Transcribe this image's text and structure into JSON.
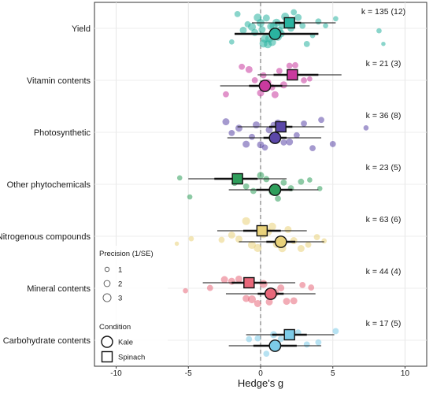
{
  "chart_data": {
    "type": "scatter",
    "title": "",
    "xlabel": "Hedge's g",
    "ylabel": "",
    "xlim": [
      -11.5,
      11.5
    ],
    "x_ticks": [
      -10,
      -5,
      0,
      5,
      10
    ],
    "x_tick_labels": [
      "-10",
      "-5",
      "0",
      "5",
      "10"
    ],
    "reference_line_x": 0,
    "grid": true,
    "categories": [
      "Yield",
      "Vitamin contents",
      "Photosynthetic",
      "Other phytochemicals",
      "Nitrogenous compounds",
      "Mineral contents",
      "Carbohydrate contents"
    ],
    "k_labels": [
      "k = 135 (12)",
      "k = 21 (3)",
      "k = 36 (8)",
      "k = 23 (5)",
      "k = 63 (6)",
      "k = 44 (4)",
      "k = 17 (5)"
    ],
    "colors": [
      "#2ab3a0",
      "#c93a9e",
      "#5b47a8",
      "#2f9e5b",
      "#e9d27a",
      "#e8687a",
      "#7ccbe8"
    ],
    "estimates": [
      {
        "category": "Yield",
        "condition": "Kale",
        "g": 1.0,
        "ci": [
          -1.8,
          4.0
        ],
        "pi": [
          -1.8,
          4.0
        ]
      },
      {
        "category": "Yield",
        "condition": "Spinach",
        "g": 2.0,
        "ci": [
          1.0,
          2.8
        ],
        "pi": [
          -0.6,
          5.2
        ]
      },
      {
        "category": "Vitamin contents",
        "condition": "Kale",
        "g": 0.3,
        "ci": [
          -0.8,
          1.5
        ],
        "pi": [
          -2.8,
          3.4
        ]
      },
      {
        "category": "Vitamin contents",
        "condition": "Spinach",
        "g": 2.2,
        "ci": [
          0.9,
          4.0
        ],
        "pi": [
          -0.2,
          5.6
        ]
      },
      {
        "category": "Photosynthetic",
        "condition": "Kale",
        "g": 1.0,
        "ci": [
          0.2,
          1.8
        ],
        "pi": [
          -2.3,
          4.2
        ]
      },
      {
        "category": "Photosynthetic",
        "condition": "Spinach",
        "g": 1.4,
        "ci": [
          0.6,
          2.2
        ],
        "pi": [
          -1.6,
          4.4
        ]
      },
      {
        "category": "Other phytochemicals",
        "condition": "Kale",
        "g": 1.0,
        "ci": [
          -0.3,
          2.2
        ],
        "pi": [
          -2.2,
          4.0
        ]
      },
      {
        "category": "Other phytochemicals",
        "condition": "Spinach",
        "g": -1.6,
        "ci": [
          -3.2,
          -0.2
        ],
        "pi": [
          -5.0,
          1.8
        ]
      },
      {
        "category": "Nitrogenous compounds",
        "condition": "Kale",
        "g": 1.4,
        "ci": [
          0.4,
          2.4
        ],
        "pi": [
          -1.5,
          4.4
        ]
      },
      {
        "category": "Nitrogenous compounds",
        "condition": "Spinach",
        "g": 0.1,
        "ci": [
          -1.2,
          1.4
        ],
        "pi": [
          -3.0,
          3.2
        ]
      },
      {
        "category": "Mineral contents",
        "condition": "Kale",
        "g": 0.7,
        "ci": [
          -0.2,
          1.6
        ],
        "pi": [
          -2.4,
          3.8
        ]
      },
      {
        "category": "Mineral contents",
        "condition": "Spinach",
        "g": -0.8,
        "ci": [
          -2.0,
          0.4
        ],
        "pi": [
          -4.0,
          2.4
        ]
      },
      {
        "category": "Carbohydrate contents",
        "condition": "Kale",
        "g": 1.0,
        "ci": [
          -0.5,
          2.5
        ],
        "pi": [
          -2.2,
          4.2
        ]
      },
      {
        "category": "Carbohydrate contents",
        "condition": "Spinach",
        "g": 2.0,
        "ci": [
          0.8,
          3.2
        ],
        "pi": [
          -1.0,
          5.1
        ]
      }
    ],
    "series": [
      {
        "name": "Yield",
        "points": [
          {
            "g": -2.0,
            "p": 1.5
          },
          {
            "g": -1.6,
            "p": 2.0
          },
          {
            "g": -1.2,
            "p": 2.5
          },
          {
            "g": -0.9,
            "p": 2.0
          },
          {
            "g": -0.6,
            "p": 3.0
          },
          {
            "g": -0.4,
            "p": 2.5
          },
          {
            "g": -0.2,
            "p": 3.0
          },
          {
            "g": 0.0,
            "p": 3.0
          },
          {
            "g": 0.1,
            "p": 2.5
          },
          {
            "g": 0.2,
            "p": 3.0
          },
          {
            "g": 0.3,
            "p": 3.0
          },
          {
            "g": 0.4,
            "p": 2.5
          },
          {
            "g": 0.5,
            "p": 3.0
          },
          {
            "g": 0.6,
            "p": 3.0
          },
          {
            "g": 0.7,
            "p": 2.5
          },
          {
            "g": 0.8,
            "p": 3.0
          },
          {
            "g": 0.9,
            "p": 3.0
          },
          {
            "g": 1.0,
            "p": 2.5
          },
          {
            "g": 1.1,
            "p": 3.0
          },
          {
            "g": 1.2,
            "p": 3.0
          },
          {
            "g": 1.3,
            "p": 2.5
          },
          {
            "g": 1.4,
            "p": 3.0
          },
          {
            "g": 1.5,
            "p": 2.5
          },
          {
            "g": 1.7,
            "p": 3.0
          },
          {
            "g": 1.9,
            "p": 2.5
          },
          {
            "g": 2.1,
            "p": 2.5
          },
          {
            "g": 2.3,
            "p": 2.0
          },
          {
            "g": 2.6,
            "p": 2.5
          },
          {
            "g": 2.9,
            "p": 2.0
          },
          {
            "g": 3.2,
            "p": 2.0
          },
          {
            "g": 3.6,
            "p": 1.5
          },
          {
            "g": 4.0,
            "p": 2.0
          },
          {
            "g": 4.5,
            "p": 1.5
          },
          {
            "g": 5.2,
            "p": 1.5
          },
          {
            "g": 8.2,
            "p": 1.5
          },
          {
            "g": 8.5,
            "p": 1.0
          }
        ]
      },
      {
        "name": "Vitamin contents",
        "points": [
          {
            "g": -2.4,
            "p": 2.0
          },
          {
            "g": -1.3,
            "p": 2.0
          },
          {
            "g": -0.8,
            "p": 2.5
          },
          {
            "g": -0.4,
            "p": 2.0
          },
          {
            "g": 0.0,
            "p": 2.5
          },
          {
            "g": 0.2,
            "p": 2.0
          },
          {
            "g": 0.5,
            "p": 2.5
          },
          {
            "g": 0.8,
            "p": 2.0
          },
          {
            "g": 1.0,
            "p": 2.5
          },
          {
            "g": 1.3,
            "p": 2.0
          },
          {
            "g": 1.6,
            "p": 2.5
          },
          {
            "g": 2.0,
            "p": 2.0
          },
          {
            "g": 2.4,
            "p": 2.0
          },
          {
            "g": 3.0,
            "p": 2.0
          },
          {
            "g": 3.4,
            "p": 1.5
          }
        ]
      },
      {
        "name": "Photosynthetic",
        "points": [
          {
            "g": -2.4,
            "p": 2.5
          },
          {
            "g": -2.0,
            "p": 2.0
          },
          {
            "g": -1.5,
            "p": 2.5
          },
          {
            "g": -1.0,
            "p": 2.5
          },
          {
            "g": -0.6,
            "p": 2.0
          },
          {
            "g": -0.3,
            "p": 2.5
          },
          {
            "g": 0.0,
            "p": 2.5
          },
          {
            "g": 0.3,
            "p": 2.0
          },
          {
            "g": 0.6,
            "p": 2.5
          },
          {
            "g": 0.9,
            "p": 2.0
          },
          {
            "g": 1.2,
            "p": 2.5
          },
          {
            "g": 1.6,
            "p": 2.0
          },
          {
            "g": 2.0,
            "p": 2.5
          },
          {
            "g": 2.5,
            "p": 2.0
          },
          {
            "g": 3.0,
            "p": 2.0
          },
          {
            "g": 3.6,
            "p": 2.0
          },
          {
            "g": 4.2,
            "p": 2.0
          },
          {
            "g": 5.0,
            "p": 2.0
          },
          {
            "g": 7.3,
            "p": 1.5
          }
        ]
      },
      {
        "name": "Other phytochemicals",
        "points": [
          {
            "g": -5.6,
            "p": 1.5
          },
          {
            "g": -4.9,
            "p": 1.5
          },
          {
            "g": -1.8,
            "p": 2.0
          },
          {
            "g": -1.0,
            "p": 2.0
          },
          {
            "g": -0.5,
            "p": 2.0
          },
          {
            "g": 0.0,
            "p": 2.5
          },
          {
            "g": 0.4,
            "p": 2.0
          },
          {
            "g": 0.8,
            "p": 2.5
          },
          {
            "g": 1.2,
            "p": 2.0
          },
          {
            "g": 1.6,
            "p": 2.0
          },
          {
            "g": 2.1,
            "p": 2.0
          },
          {
            "g": 2.8,
            "p": 2.0
          },
          {
            "g": 3.4,
            "p": 1.5
          },
          {
            "g": 4.1,
            "p": 1.5
          }
        ]
      },
      {
        "name": "Nitrogenous compounds",
        "points": [
          {
            "g": -5.8,
            "p": 1.0
          },
          {
            "g": -4.8,
            "p": 1.5
          },
          {
            "g": -2.7,
            "p": 2.0
          },
          {
            "g": -2.0,
            "p": 2.5
          },
          {
            "g": -1.5,
            "p": 2.5
          },
          {
            "g": -1.0,
            "p": 3.0
          },
          {
            "g": -0.6,
            "p": 3.0
          },
          {
            "g": -0.2,
            "p": 3.0
          },
          {
            "g": 0.2,
            "p": 3.0
          },
          {
            "g": 0.5,
            "p": 3.0
          },
          {
            "g": 0.8,
            "p": 3.0
          },
          {
            "g": 1.1,
            "p": 2.5
          },
          {
            "g": 1.5,
            "p": 3.0
          },
          {
            "g": 1.9,
            "p": 2.5
          },
          {
            "g": 2.3,
            "p": 2.5
          },
          {
            "g": 2.8,
            "p": 2.5
          },
          {
            "g": 3.3,
            "p": 2.0
          },
          {
            "g": 3.9,
            "p": 2.0
          },
          {
            "g": 4.4,
            "p": 1.5
          }
        ]
      },
      {
        "name": "Mineral contents",
        "points": [
          {
            "g": -5.2,
            "p": 1.5
          },
          {
            "g": -3.5,
            "p": 2.0
          },
          {
            "g": -2.5,
            "p": 2.5
          },
          {
            "g": -2.0,
            "p": 2.5
          },
          {
            "g": -1.5,
            "p": 2.5
          },
          {
            "g": -1.0,
            "p": 2.5
          },
          {
            "g": -0.6,
            "p": 3.0
          },
          {
            "g": -0.2,
            "p": 2.5
          },
          {
            "g": 0.2,
            "p": 3.0
          },
          {
            "g": 0.6,
            "p": 2.5
          },
          {
            "g": 1.0,
            "p": 3.0
          },
          {
            "g": 1.4,
            "p": 2.5
          },
          {
            "g": 1.8,
            "p": 2.5
          },
          {
            "g": 2.3,
            "p": 2.5
          },
          {
            "g": 2.9,
            "p": 2.0
          },
          {
            "g": 3.5,
            "p": 2.0
          }
        ]
      },
      {
        "name": "Carbohydrate contents",
        "points": [
          {
            "g": -0.8,
            "p": 2.0
          },
          {
            "g": -0.2,
            "p": 2.0
          },
          {
            "g": 0.4,
            "p": 2.0
          },
          {
            "g": 0.9,
            "p": 2.5
          },
          {
            "g": 1.4,
            "p": 2.0
          },
          {
            "g": 2.0,
            "p": 2.5
          },
          {
            "g": 2.6,
            "p": 2.0
          },
          {
            "g": 3.2,
            "p": 2.0
          },
          {
            "g": 4.0,
            "p": 2.0
          },
          {
            "g": 5.2,
            "p": 2.0
          }
        ]
      }
    ],
    "legend": {
      "placement": "bottom-left",
      "precision_title": "Precision (1/SE)",
      "precision_values": [
        "1",
        "2",
        "3"
      ],
      "condition_title": "Condition",
      "conditions": [
        "Kale",
        "Spinach"
      ]
    }
  }
}
